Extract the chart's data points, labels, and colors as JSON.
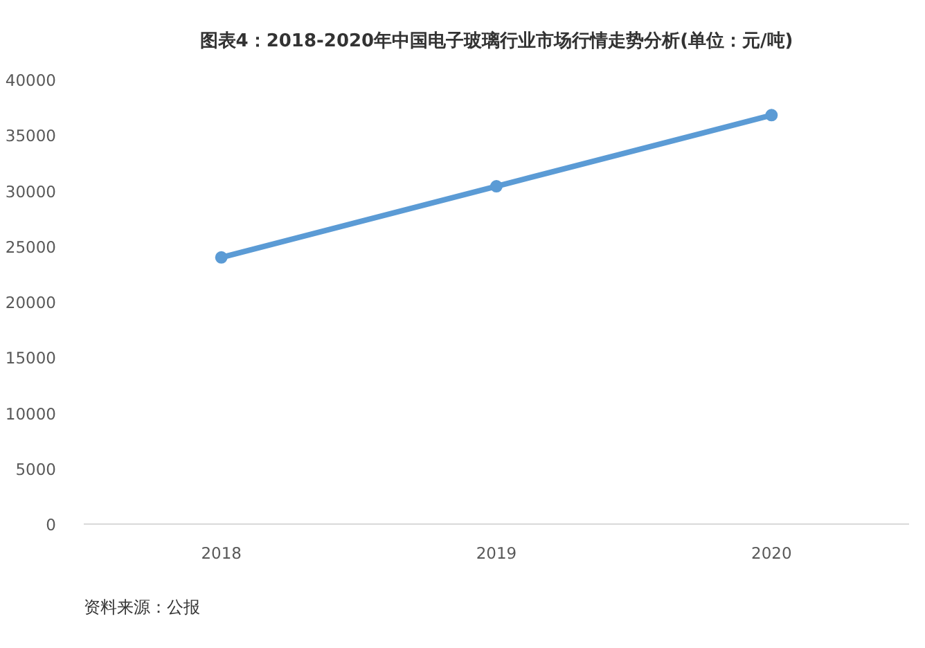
{
  "chart_data": {
    "type": "line",
    "title": "图表4：2018-2020年中国电子玻璃行业市场行情走势分析(单位：元/吨)",
    "categories": [
      "2018",
      "2019",
      "2020"
    ],
    "series": [
      {
        "color": "#5b9bd5",
        "values": [
          24000,
          30400,
          36800
        ]
      }
    ],
    "ylim": [
      0,
      40000
    ],
    "yticks": [
      0,
      5000,
      10000,
      15000,
      20000,
      25000,
      30000,
      35000,
      40000
    ],
    "grid": false,
    "marker": "circle",
    "line_style": "solid",
    "annotations": [
      "资料来源：公报"
    ]
  }
}
